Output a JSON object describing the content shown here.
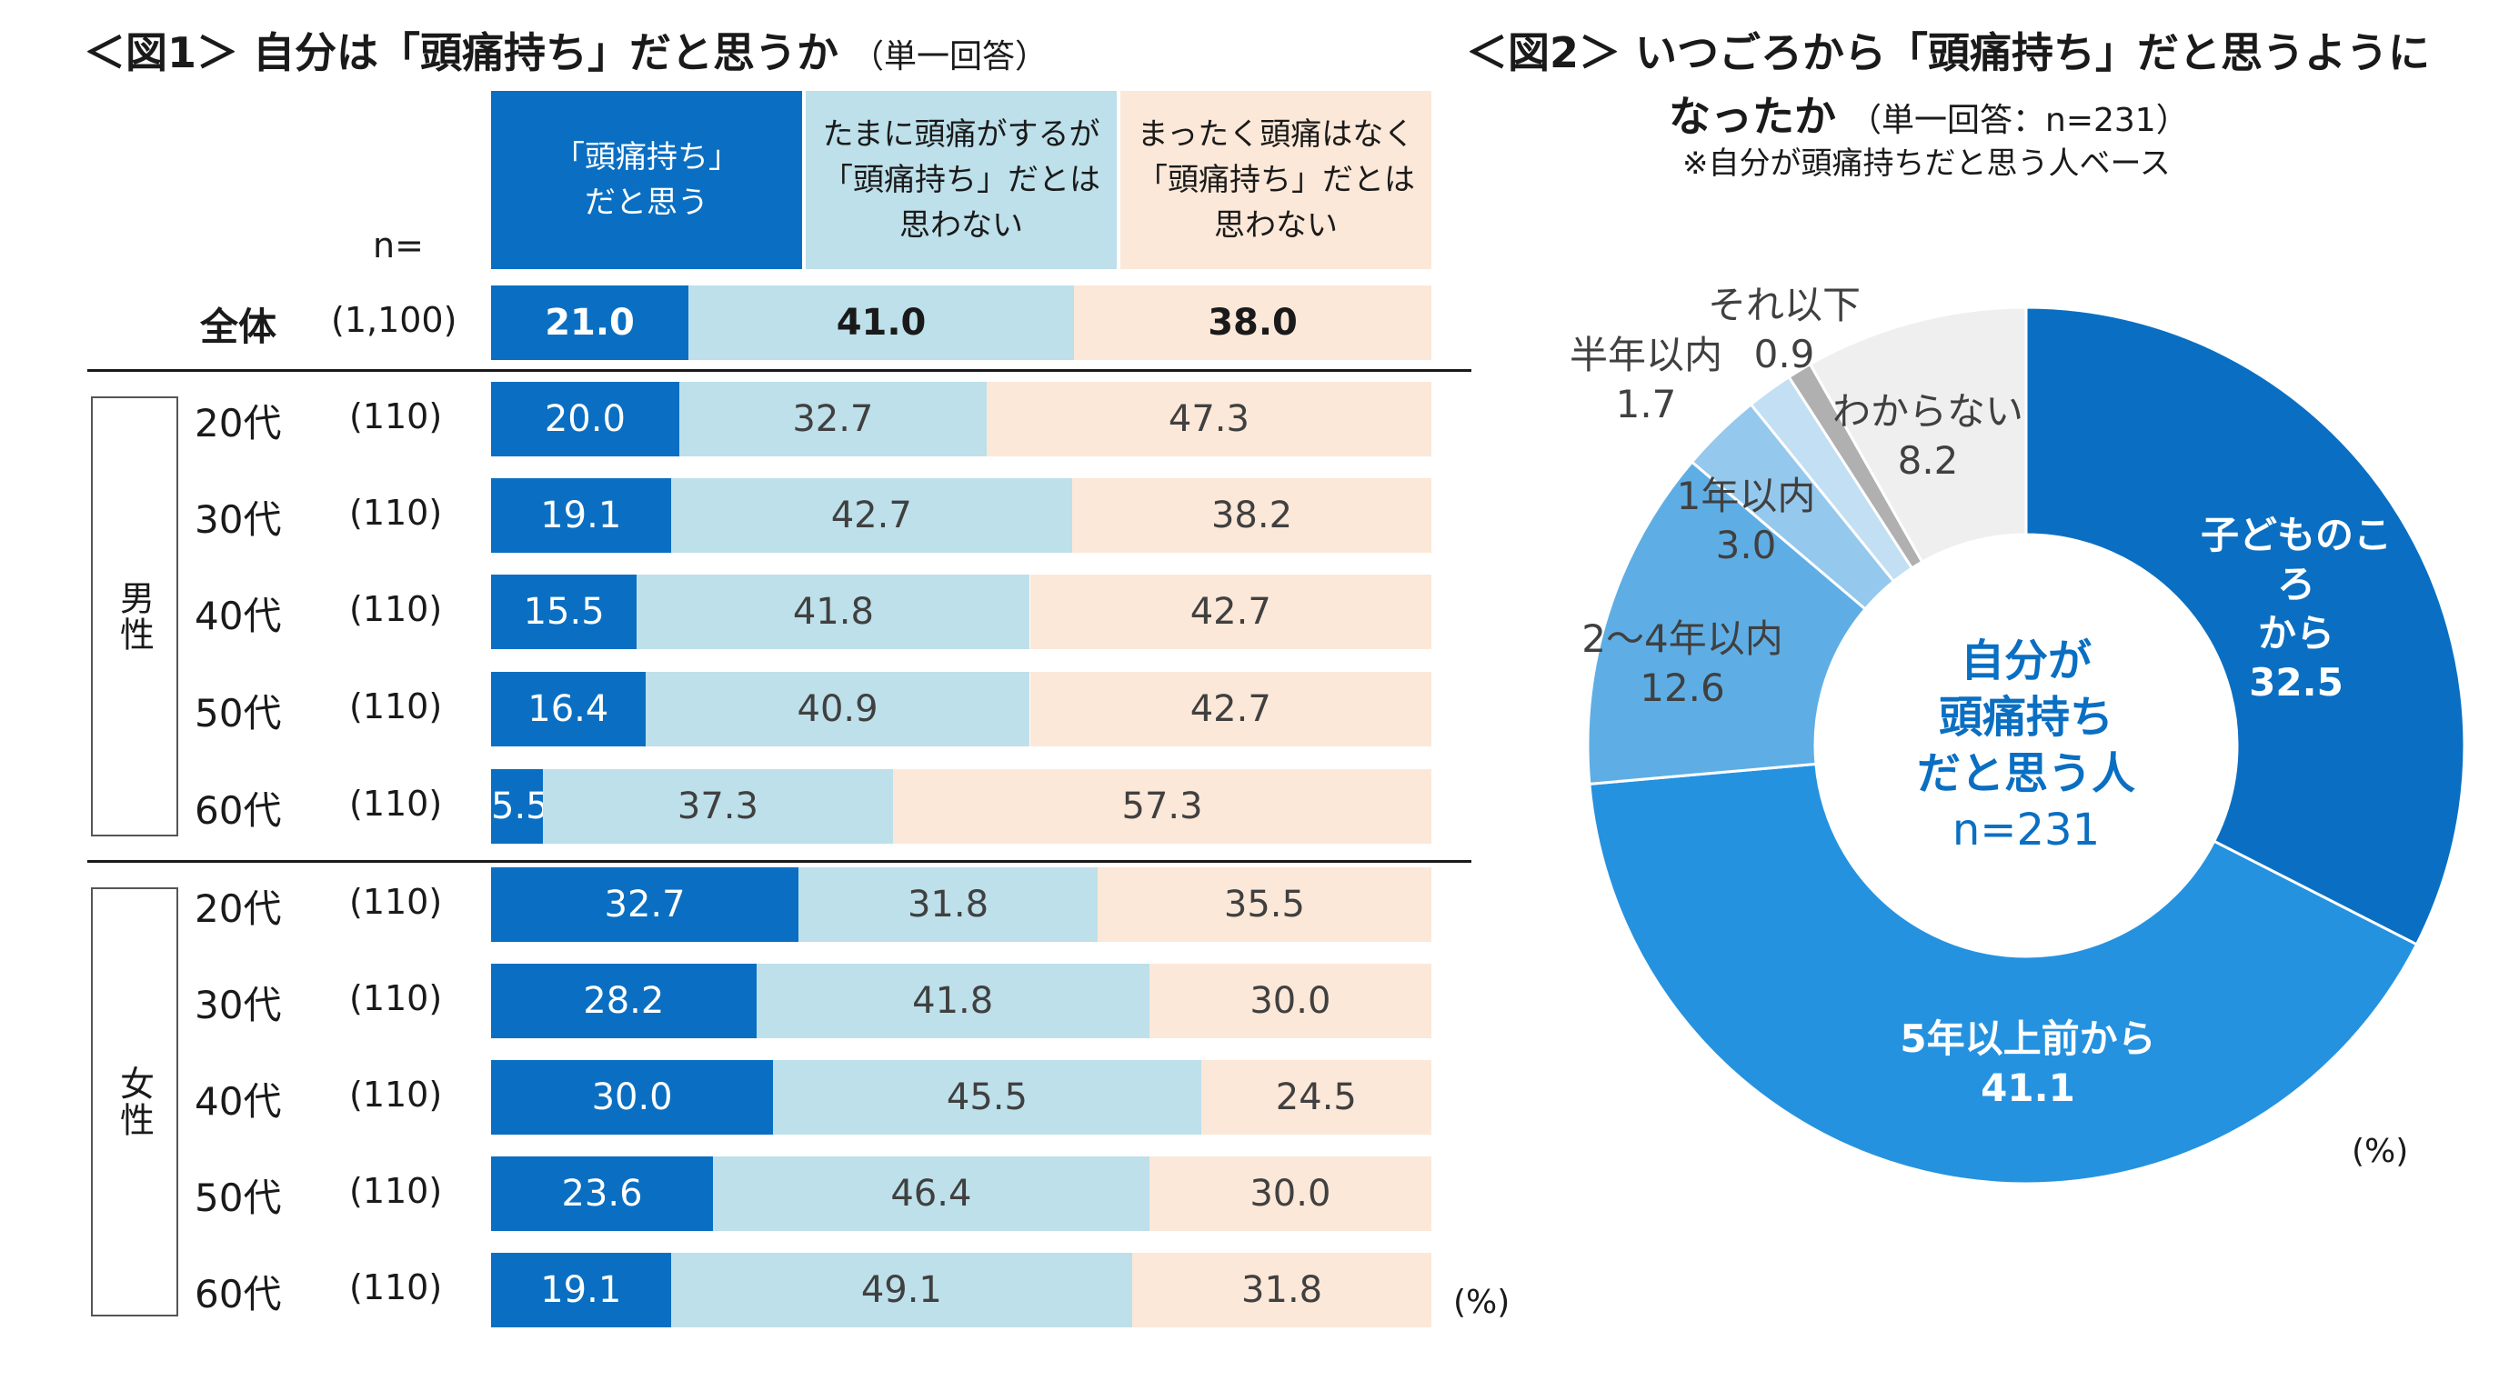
{
  "fig1": {
    "title": "＜図1＞ 自分は「頭痛持ち」だと思うか",
    "subtitle": "（単一回答）",
    "n_caption": "n=",
    "unit": "(%)",
    "headers": [
      "「頭痛持ち」\nだと思う",
      "たまに頭痛がするが\n「頭痛持ち」だとは\n思わない",
      "まったく頭痛はなく\n「頭痛持ち」だとは\n思わない"
    ],
    "group_male": "男性",
    "group_female": "女性"
  },
  "fig2": {
    "title_line1": "＜図2＞ いつごろから「頭痛持ち」だと思うように",
    "title_line2": "なったか",
    "subtitle": "（単一回答：n=231）",
    "note": "※自分が頭痛持ちだと思う人ベース",
    "center_label": "自分が\n頭痛持ち\nだと思う人",
    "center_n": "n=231",
    "unit": "(%)"
  },
  "chart_data": [
    {
      "type": "bar",
      "orientation": "horizontal-stacked-100",
      "title": "＜図1＞ 自分は「頭痛持ち」だと思うか",
      "series_names": [
        "「頭痛持ち」だと思う",
        "たまに頭痛がするが「頭痛持ち」だとは思わない",
        "まったく頭痛はなく「頭痛持ち」だとは思わない"
      ],
      "colors": [
        "#0a6fc2",
        "#bde0ea",
        "#fce8d8"
      ],
      "rows": [
        {
          "label": "全体",
          "n": "(1,100)",
          "values": [
            21.0,
            41.0,
            38.0
          ],
          "labels": [
            "21.0",
            "41.0",
            "38.0"
          ]
        },
        {
          "label": "20代",
          "n": "(110)",
          "values": [
            20.0,
            32.7,
            47.3
          ],
          "labels": [
            "20.0",
            "32.7",
            "47.3"
          ]
        },
        {
          "label": "30代",
          "n": "(110)",
          "values": [
            19.1,
            42.7,
            38.2
          ],
          "labels": [
            "19.1",
            "42.7",
            "38.2"
          ]
        },
        {
          "label": "40代",
          "n": "(110)",
          "values": [
            15.5,
            41.8,
            42.7
          ],
          "labels": [
            "15.5",
            "41.8",
            "42.7"
          ]
        },
        {
          "label": "50代",
          "n": "(110)",
          "values": [
            16.4,
            40.9,
            42.7
          ],
          "labels": [
            "16.4",
            "40.9",
            "42.7"
          ]
        },
        {
          "label": "60代",
          "n": "(110)",
          "values": [
            5.5,
            37.3,
            57.3
          ],
          "labels": [
            "5.5",
            "37.3",
            "57.3"
          ]
        },
        {
          "label": "20代",
          "n": "(110)",
          "values": [
            32.7,
            31.8,
            35.5
          ],
          "labels": [
            "32.7",
            "31.8",
            "35.5"
          ]
        },
        {
          "label": "30代",
          "n": "(110)",
          "values": [
            28.2,
            41.8,
            30.0
          ],
          "labels": [
            "28.2",
            "41.8",
            "30.0"
          ]
        },
        {
          "label": "40代",
          "n": "(110)",
          "values": [
            30.0,
            45.5,
            24.5
          ],
          "labels": [
            "30.0",
            "45.5",
            "24.5"
          ]
        },
        {
          "label": "50代",
          "n": "(110)",
          "values": [
            23.6,
            46.4,
            30.0
          ],
          "labels": [
            "23.6",
            "46.4",
            "30.0"
          ]
        },
        {
          "label": "60代",
          "n": "(110)",
          "values": [
            19.1,
            49.1,
            31.8
          ],
          "labels": [
            "19.1",
            "49.1",
            "31.8"
          ]
        }
      ],
      "xlim": [
        0,
        100
      ]
    },
    {
      "type": "pie",
      "subtype": "donut",
      "title": "＜図2＞ いつごろから「頭痛持ち」だと思うようになったか",
      "slices": [
        {
          "label": "子どものころから",
          "display": "子どものころ\nから",
          "value": 32.5,
          "value_label": "32.5",
          "color": "#0a6fc2",
          "inside": true
        },
        {
          "label": "5年以上前から",
          "display": "5年以上前から",
          "value": 41.1,
          "value_label": "41.1",
          "color": "#2592e0",
          "inside": true
        },
        {
          "label": "2～4年以内",
          "display": "2～4年以内",
          "value": 12.6,
          "value_label": "12.6",
          "color": "#5eaee5",
          "inside": false
        },
        {
          "label": "1年以内",
          "display": "1年以内",
          "value": 3.0,
          "value_label": "3.0",
          "color": "#95c8ed",
          "inside": false
        },
        {
          "label": "半年以内",
          "display": "半年以内",
          "value": 1.7,
          "value_label": "1.7",
          "color": "#c2dff3",
          "inside": false
        },
        {
          "label": "それ以下",
          "display": "それ以下",
          "value": 0.9,
          "value_label": "0.9",
          "color": "#b0b0b0",
          "inside": false
        },
        {
          "label": "わからない",
          "display": "わからない",
          "value": 8.2,
          "value_label": "8.2",
          "color": "#efefef",
          "inside": false
        }
      ]
    }
  ]
}
